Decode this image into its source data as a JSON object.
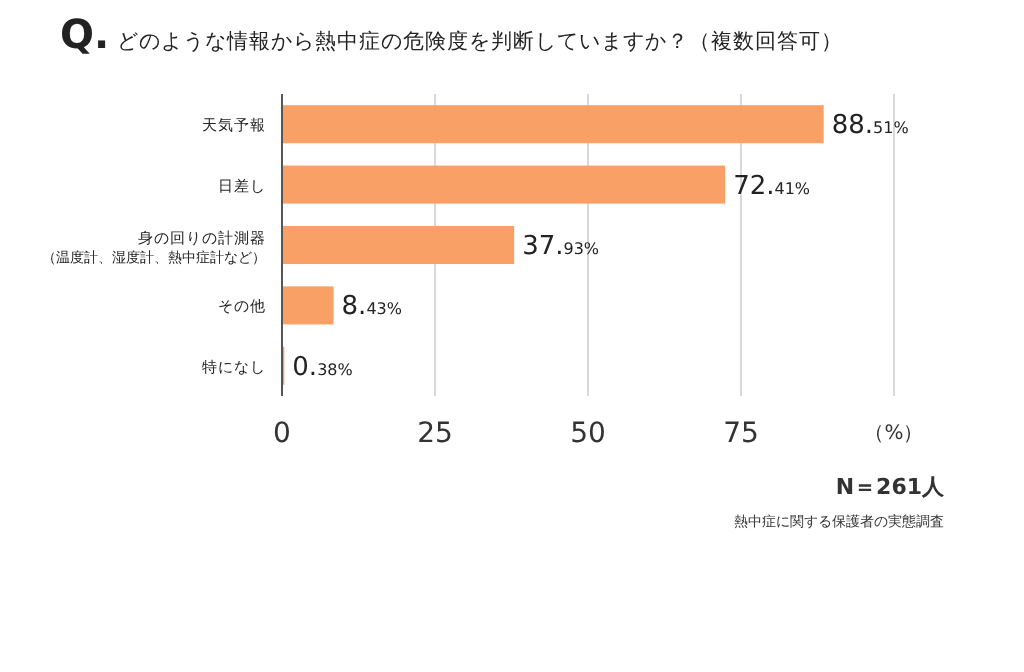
{
  "chart_data": {
    "type": "bar",
    "orientation": "horizontal",
    "title": "Q. どのような情報から熱中症の危険度を判断していますか？（複数回答可）",
    "categories": [
      "天気予報",
      "日差し",
      "身の回りの計測器（温度計、湿度計、熱中症計など）",
      "その他",
      "特になし"
    ],
    "values": [
      88.51,
      72.41,
      37.93,
      8.43,
      0.38
    ],
    "value_labels": [
      "88.51%",
      "72.41%",
      "37.93%",
      "8.43%",
      "0.38%"
    ],
    "color": "#f9a066",
    "xlim": [
      0,
      100
    ],
    "xticks": [
      0,
      25,
      50,
      75,
      {
        "value": 100,
        "label": "（%）"
      }
    ],
    "grid": "x",
    "annotations": [
      "N＝261人",
      "熱中症に関する保護者の実態調査"
    ]
  }
}
